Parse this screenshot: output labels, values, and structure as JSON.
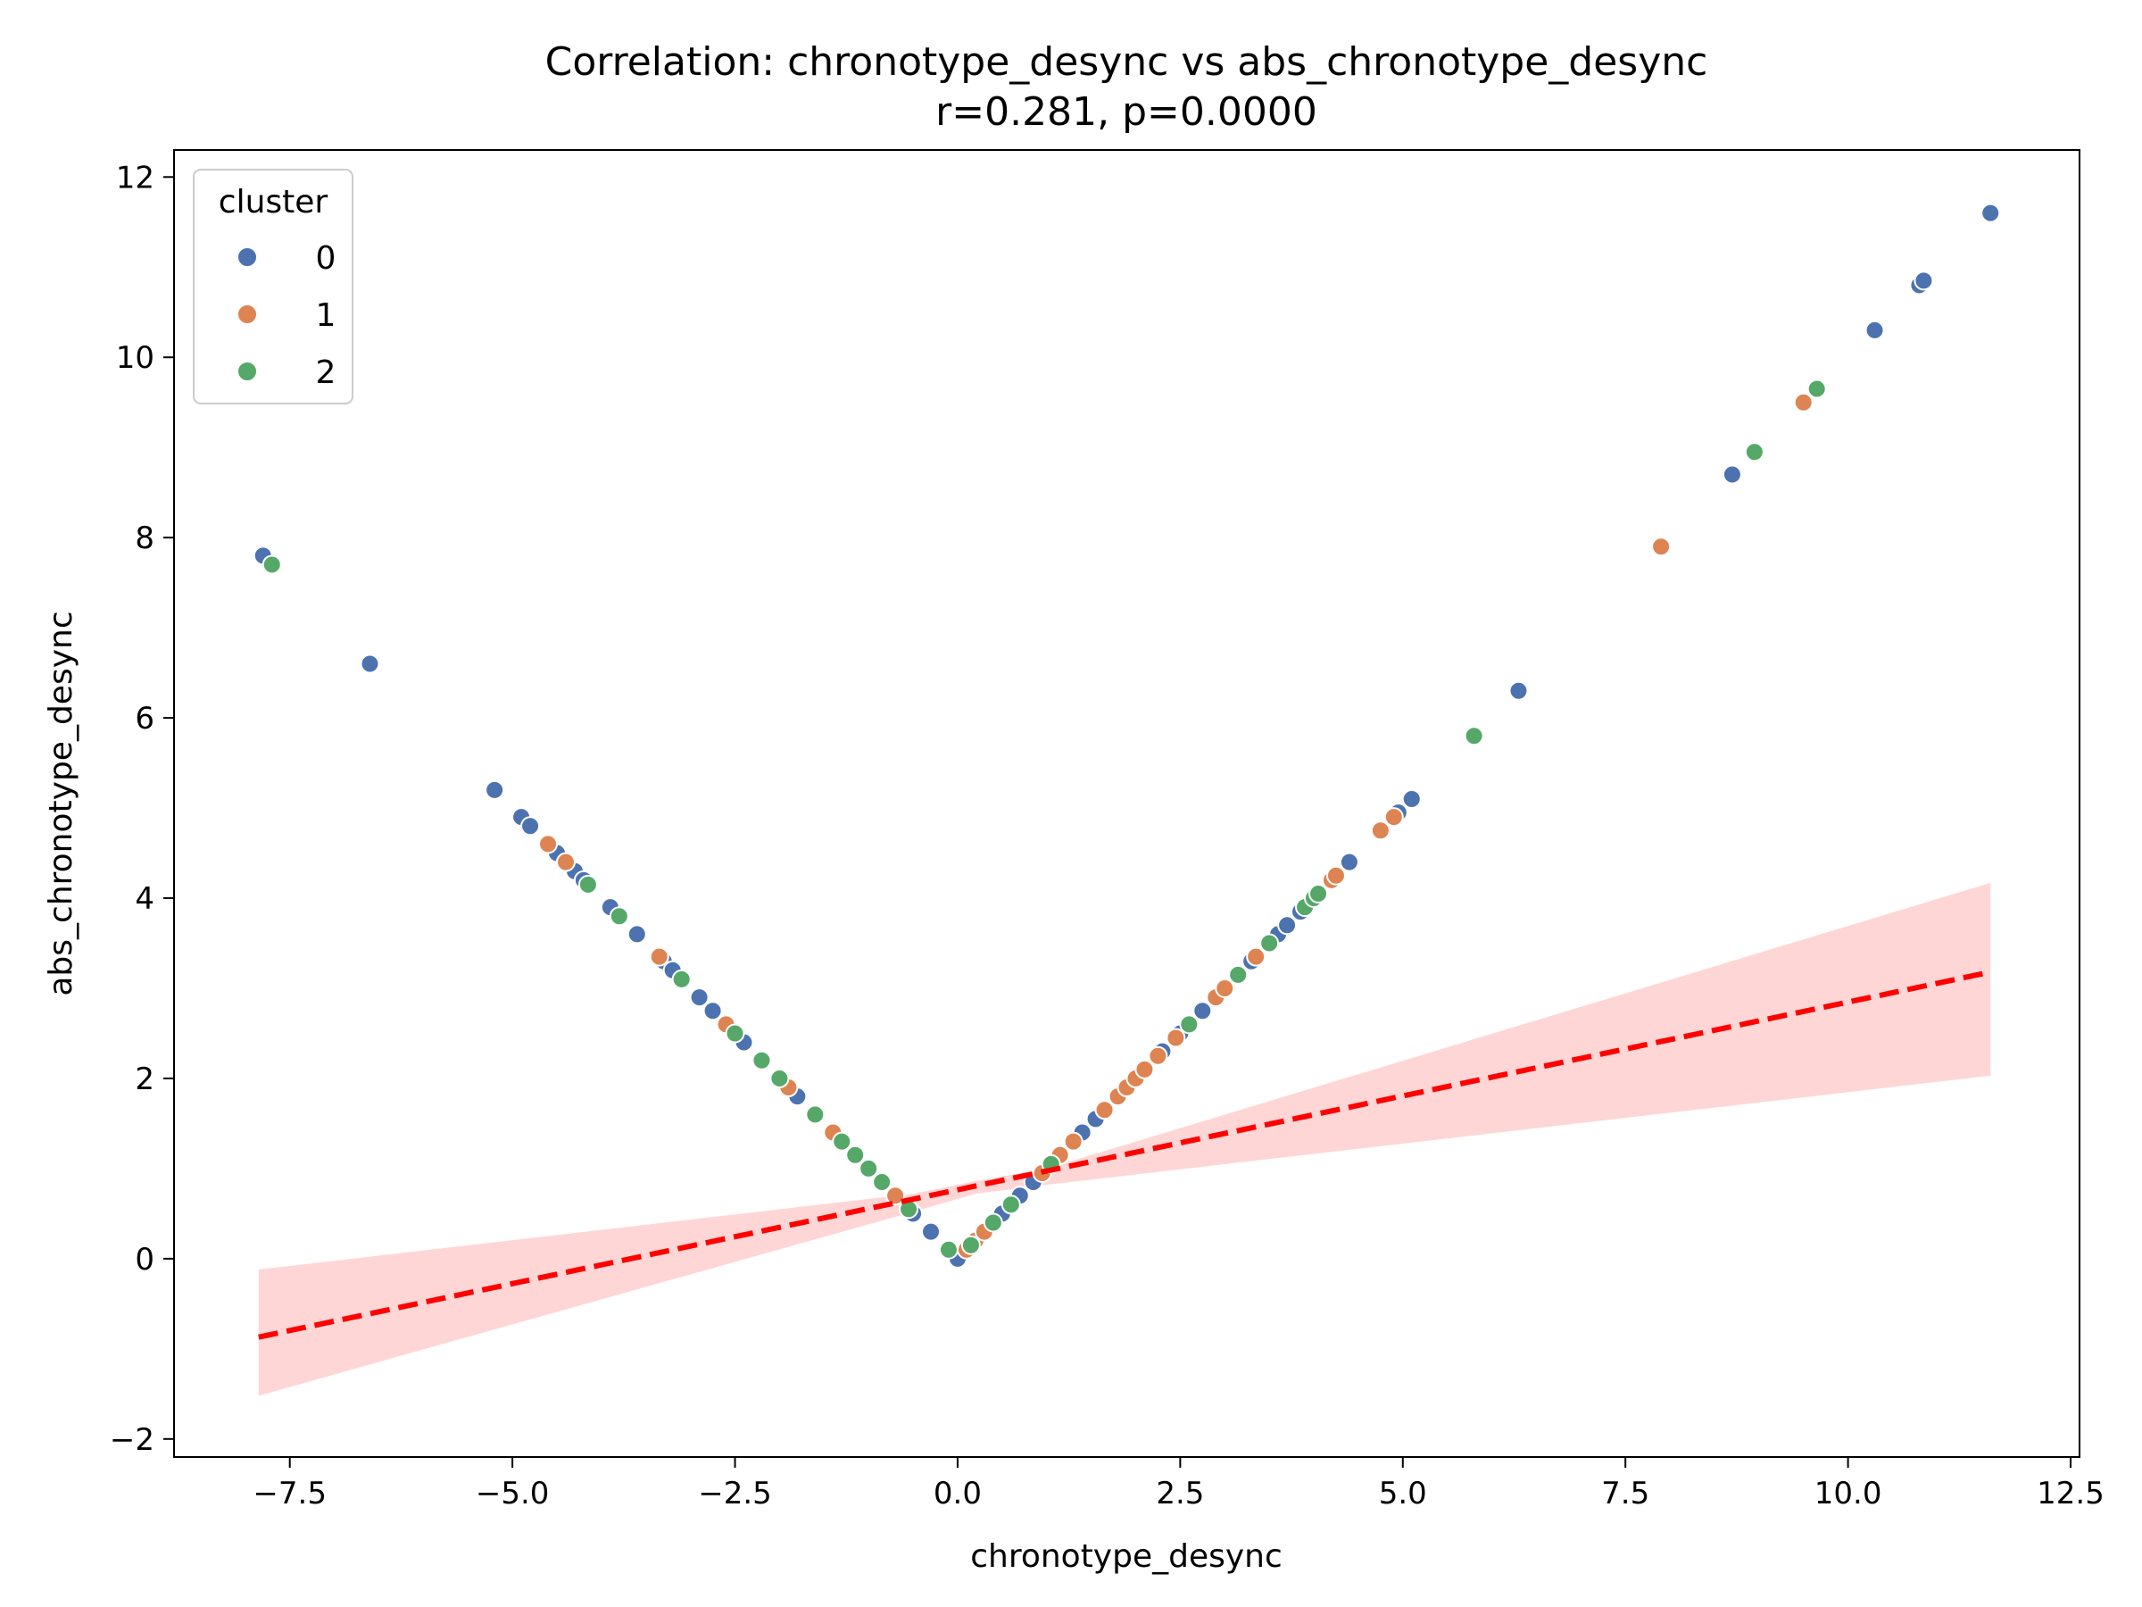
{
  "chart_data": {
    "type": "scatter",
    "title": "Correlation: chronotype_desync vs abs_chronotype_desync",
    "subtitle": "r=0.281, p=0.0000",
    "xlabel": "chronotype_desync",
    "ylabel": "abs_chronotype_desync",
    "xlim": [
      -8.8,
      12.6
    ],
    "ylim": [
      -2.2,
      12.3
    ],
    "xticks": [
      -7.5,
      -5.0,
      -2.5,
      0.0,
      2.5,
      5.0,
      7.5,
      10.0,
      12.5
    ],
    "xtick_labels": [
      "−7.5",
      "−5.0",
      "−2.5",
      "0.0",
      "2.5",
      "5.0",
      "7.5",
      "10.0",
      "12.5"
    ],
    "yticks": [
      -2,
      0,
      2,
      4,
      6,
      8,
      10,
      12
    ],
    "ytick_labels": [
      "−2",
      "0",
      "2",
      "4",
      "6",
      "8",
      "10",
      "12"
    ],
    "grid": false,
    "legend": {
      "title": "cluster",
      "placement": "top-left"
    },
    "series": [
      {
        "name": "0",
        "color": "#4c72b0",
        "x": [
          -7.8,
          -6.6,
          -5.2,
          -4.9,
          -4.8,
          -4.5,
          -4.3,
          -4.2,
          -3.9,
          -3.6,
          -3.3,
          -3.2,
          -2.9,
          -2.75,
          -2.4,
          -2.2,
          -1.8,
          -1.4,
          -1.0,
          -0.85,
          -0.5,
          -0.3,
          0.0,
          0.3,
          0.5,
          0.7,
          0.85,
          1.4,
          1.55,
          1.9,
          2.3,
          2.5,
          2.75,
          2.9,
          3.3,
          3.6,
          3.7,
          3.85,
          4.4,
          4.95,
          5.1,
          6.3,
          8.7,
          10.8,
          10.85,
          10.3,
          11.6
        ],
        "y": [
          7.8,
          6.6,
          5.2,
          4.9,
          4.8,
          4.5,
          4.3,
          4.2,
          3.9,
          3.6,
          3.3,
          3.2,
          2.9,
          2.75,
          2.4,
          2.2,
          1.8,
          1.4,
          1.0,
          0.85,
          0.5,
          0.3,
          0.0,
          0.3,
          0.5,
          0.7,
          0.85,
          1.4,
          1.55,
          1.9,
          2.3,
          2.5,
          2.75,
          2.9,
          3.3,
          3.6,
          3.7,
          3.85,
          4.4,
          4.95,
          5.1,
          6.3,
          8.7,
          10.8,
          10.85,
          10.3,
          11.6
        ]
      },
      {
        "name": "1",
        "color": "#dd8452",
        "x": [
          -4.6,
          -4.4,
          -3.35,
          -2.6,
          -1.9,
          -1.6,
          -1.4,
          -0.7,
          0.1,
          0.2,
          0.3,
          0.95,
          1.15,
          1.3,
          1.65,
          1.8,
          1.9,
          2.0,
          2.1,
          2.25,
          2.45,
          2.9,
          3.0,
          3.35,
          4.2,
          4.25,
          4.75,
          4.9,
          7.9,
          9.5
        ],
        "y": [
          4.6,
          4.4,
          3.35,
          2.6,
          1.9,
          1.6,
          1.4,
          0.7,
          0.1,
          0.2,
          0.3,
          0.95,
          1.15,
          1.3,
          1.65,
          1.8,
          1.9,
          2.0,
          2.1,
          2.25,
          2.45,
          2.9,
          3.0,
          3.35,
          4.2,
          4.25,
          4.75,
          4.9,
          7.9,
          9.5
        ]
      },
      {
        "name": "2",
        "color": "#55a868",
        "x": [
          -7.7,
          -4.15,
          -3.8,
          -3.1,
          -2.5,
          -2.2,
          -2.0,
          -1.6,
          -1.3,
          -1.15,
          -1.0,
          -0.85,
          -0.55,
          -0.1,
          0.15,
          0.4,
          0.6,
          1.05,
          2.6,
          3.15,
          3.5,
          3.9,
          4.0,
          4.05,
          5.8,
          8.95,
          9.65
        ],
        "y": [
          7.7,
          4.15,
          3.8,
          3.1,
          2.5,
          2.2,
          2.0,
          1.6,
          1.3,
          1.15,
          1.0,
          0.85,
          0.55,
          0.1,
          0.15,
          0.4,
          0.6,
          1.05,
          2.6,
          3.15,
          3.5,
          3.9,
          4.0,
          4.05,
          5.8,
          8.95,
          9.65
        ]
      }
    ],
    "regression": {
      "color": "#ff0000",
      "band_color": "#ffcccc",
      "x": [
        -7.85,
        11.6
      ],
      "y": [
        -0.87,
        3.18
      ],
      "band_x": [
        -7.85,
        -0.5,
        0.2,
        1.0,
        11.6
      ],
      "band_lower": [
        -1.52,
        0.52,
        0.72,
        0.82,
        2.03
      ],
      "band_upper": [
        -0.12,
        0.72,
        0.86,
        1.0,
        4.17
      ]
    }
  }
}
